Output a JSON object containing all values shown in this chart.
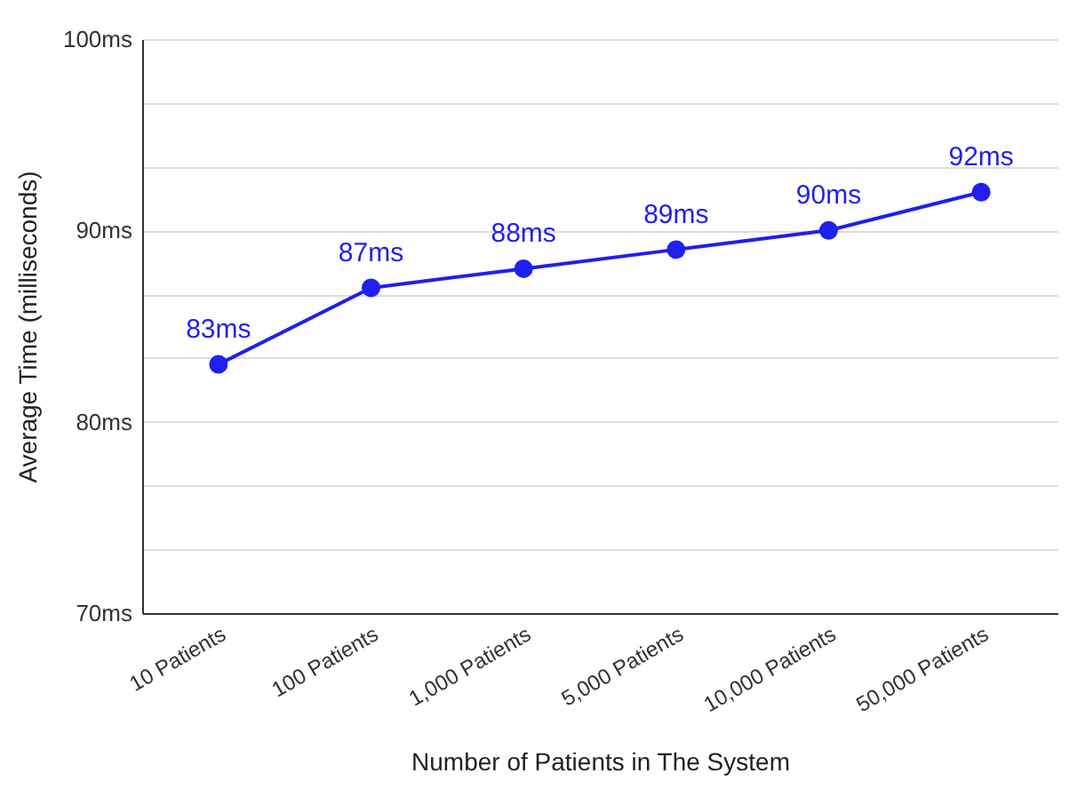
{
  "chart_data": {
    "type": "line",
    "xlabel": "Number of Patients in The System",
    "ylabel": "Average Time (milliseconds)",
    "categories": [
      "10 Patients",
      "100 Patients",
      "1,000 Patients",
      "5,000 Patients",
      "10,000 Patients",
      "50,000 Patients"
    ],
    "series": [
      {
        "color": "#1f1ff0",
        "values": [
          83,
          87,
          88,
          89,
          90,
          92
        ],
        "value_labels": [
          "83ms",
          "87ms",
          "88ms",
          "89ms",
          "90ms",
          "92ms"
        ]
      }
    ],
    "ylim": [
      70,
      100
    ],
    "yticks": [
      {
        "value": 70,
        "label": "70ms"
      },
      {
        "value": 73.33,
        "label": null
      },
      {
        "value": 76.67,
        "label": null
      },
      {
        "value": 80,
        "label": "80ms"
      },
      {
        "value": 83.33,
        "label": null
      },
      {
        "value": 86.67,
        "label": null
      },
      {
        "value": 90,
        "label": "90ms"
      },
      {
        "value": 93.33,
        "label": null
      },
      {
        "value": 96.67,
        "label": null
      },
      {
        "value": 100,
        "label": "100ms"
      }
    ],
    "grid": "y",
    "marker": "circle",
    "line_style": "solid"
  }
}
